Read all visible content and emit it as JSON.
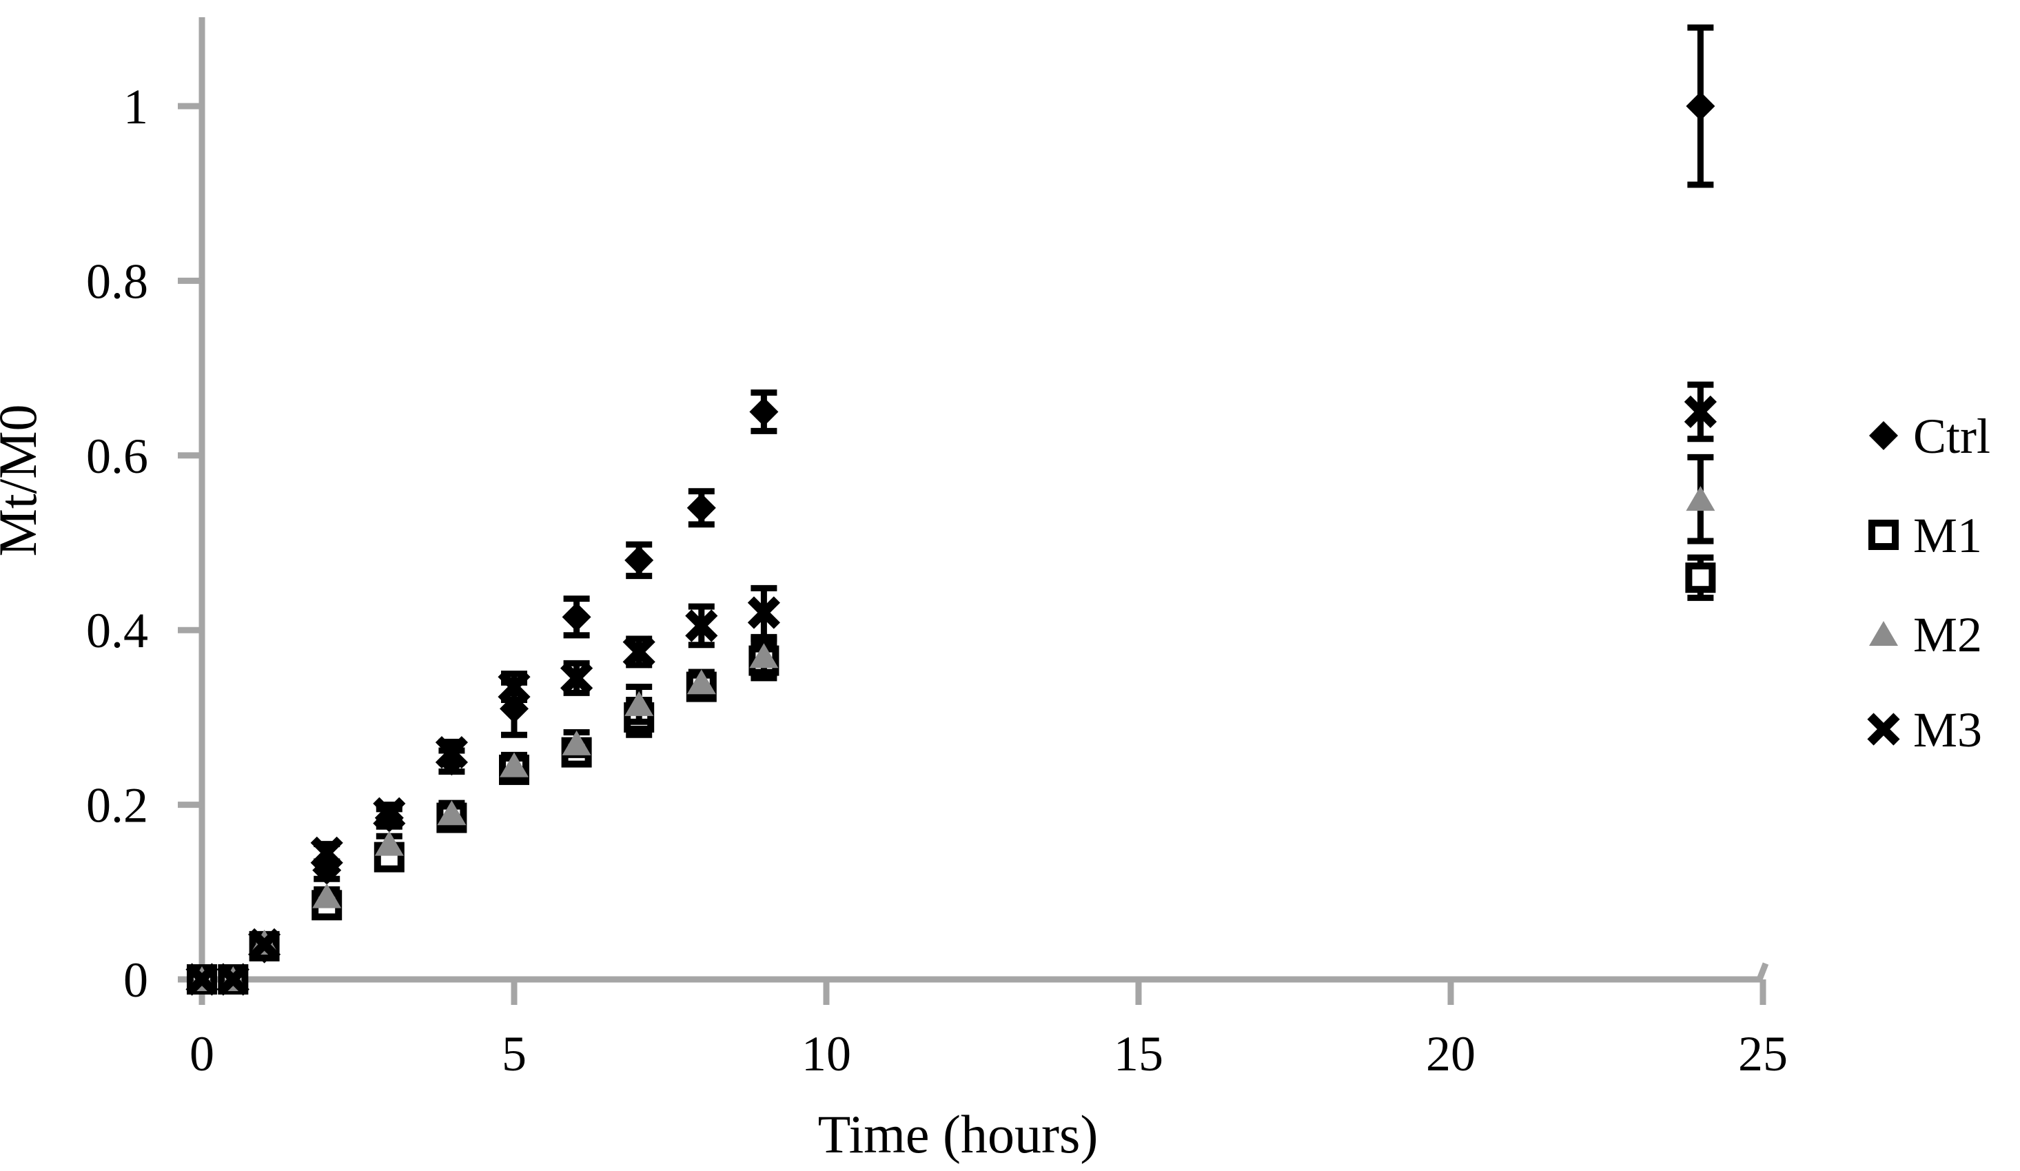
{
  "chart_data": {
    "type": "scatter",
    "title": "",
    "xlabel": "Time (hours)",
    "ylabel": "Mt/M0",
    "xlim": [
      0,
      25.3
    ],
    "ylim": [
      0,
      1.1
    ],
    "x_ticks": [
      0,
      5,
      10,
      15,
      20,
      25
    ],
    "x_tick_labels": [
      "0",
      "5",
      "10",
      "15",
      "20",
      "25"
    ],
    "y_ticks": [
      0,
      0.2,
      0.4,
      0.6,
      0.8,
      1
    ],
    "y_tick_labels": [
      "0",
      "0.2",
      "0.4",
      "0.6",
      "0.8",
      "1"
    ],
    "grid": false,
    "error_bars": true,
    "legend_position": "right-outside",
    "axis_color": "#a5a5a5",
    "text_color": "#000000",
    "background_color": "#ffffff",
    "x": [
      0,
      0.5,
      1,
      2,
      3,
      4,
      5,
      6,
      7,
      8,
      9,
      24
    ],
    "series": [
      {
        "name": "Ctrl",
        "marker": "filled-diamond",
        "color": "#000000",
        "values": [
          0,
          0,
          0.035,
          0.125,
          0.185,
          0.25,
          0.31,
          0.415,
          0.48,
          0.54,
          0.65,
          1.0
        ],
        "errors": [
          0,
          0,
          0,
          0.01,
          0.01,
          0.012,
          0.03,
          0.021,
          0.018,
          0.019,
          0.022,
          0.09
        ]
      },
      {
        "name": "M1",
        "marker": "open-square",
        "color": "#000000",
        "fill": "#ffffff",
        "values": [
          0,
          0,
          0.038,
          0.085,
          0.14,
          0.185,
          0.24,
          0.26,
          0.3,
          0.335,
          0.365,
          0.46
        ],
        "errors": [
          0,
          0,
          0,
          0.008,
          0.009,
          0.012,
          0.012,
          0.013,
          0.02,
          0.012,
          0.02,
          0.023
        ]
      },
      {
        "name": "M2",
        "marker": "filled-triangle",
        "color": "#8c8c8c",
        "values": [
          0,
          0,
          0.042,
          0.095,
          0.155,
          0.19,
          0.245,
          0.27,
          0.315,
          0.34,
          0.37,
          0.55
        ],
        "errors": [
          0,
          0,
          0,
          0.008,
          0.009,
          0.012,
          0.012,
          0.013,
          0.02,
          0.012,
          0.02,
          0.048
        ]
      },
      {
        "name": "M3",
        "marker": "x-cross",
        "color": "#000000",
        "values": [
          0,
          0,
          0.04,
          0.145,
          0.19,
          0.26,
          0.335,
          0.345,
          0.375,
          0.405,
          0.42,
          0.65
        ],
        "errors": [
          0,
          0,
          0,
          0.01,
          0.01,
          0.012,
          0.015,
          0.017,
          0.015,
          0.022,
          0.028,
          0.031
        ]
      }
    ]
  }
}
